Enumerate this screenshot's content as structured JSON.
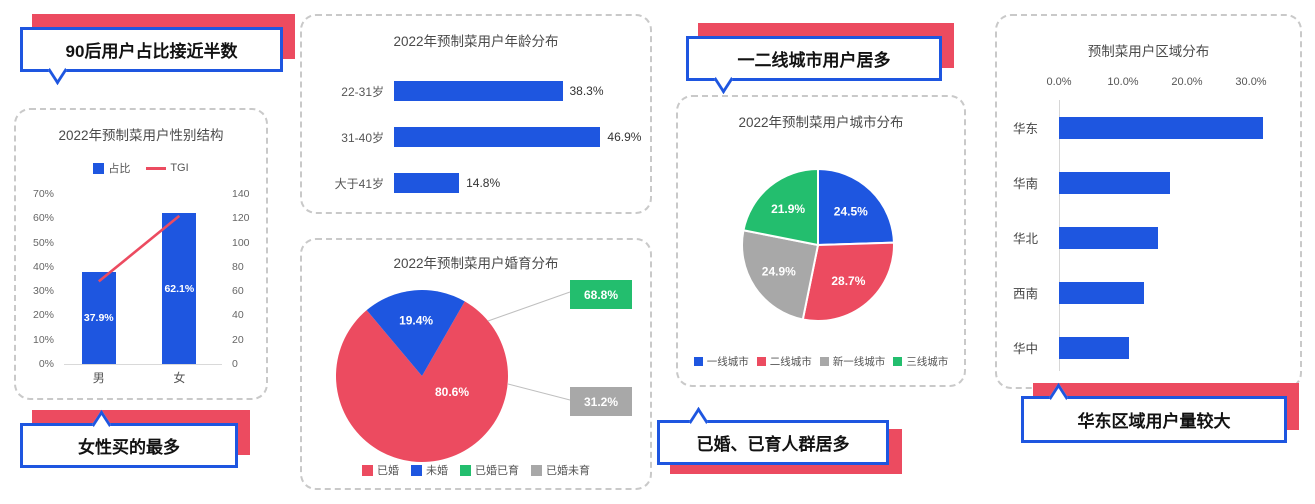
{
  "colors": {
    "blue": "#1E56E0",
    "red": "#EC4B60",
    "green": "#23BE6E",
    "gray": "#A8A8A8",
    "axis_line": "#D9D9D9",
    "connector": "#BFBFBF"
  },
  "callouts": {
    "age": {
      "label": "90后用户占比接近半数"
    },
    "gender": {
      "label": "女性买的最多"
    },
    "city": {
      "label": "一二线城市用户居多"
    },
    "marriage": {
      "label": "已婚、已育人群居多"
    },
    "region": {
      "label": "华东区域用户量较大"
    }
  },
  "chart_data": [
    {
      "id": "gender",
      "type": "bar",
      "title": "2022年预制菜用户性别结构",
      "categories": [
        "男",
        "女"
      ],
      "series": [
        {
          "name": "占比",
          "type": "bar",
          "axis": "left",
          "values": [
            37.9,
            62.1
          ],
          "labels": [
            "37.9%",
            "62.1%"
          ],
          "color_key": "blue"
        },
        {
          "name": "TGI",
          "type": "line",
          "axis": "right",
          "values": [
            68,
            122
          ],
          "estimated": true,
          "color_key": "red"
        }
      ],
      "left_axis": {
        "min": 0,
        "max": 70,
        "ticks": [
          "0%",
          "10%",
          "20%",
          "30%",
          "40%",
          "50%",
          "60%",
          "70%"
        ]
      },
      "right_axis": {
        "min": 0,
        "max": 140,
        "ticks": [
          "0",
          "20",
          "40",
          "60",
          "80",
          "100",
          "120",
          "140"
        ]
      },
      "legend_position": "top"
    },
    {
      "id": "age",
      "type": "bar",
      "orientation": "horizontal",
      "title": "2022年预制菜用户年龄分布",
      "categories": [
        "22-31岁",
        "31-40岁",
        "大于41岁"
      ],
      "values": [
        38.3,
        46.9,
        14.8
      ],
      "labels": [
        "38.3%",
        "46.9%",
        "14.8%"
      ],
      "xlim": [
        0,
        50
      ]
    },
    {
      "id": "marriage",
      "type": "pie",
      "title": "2022年预制菜用户婚育分布",
      "slices": [
        {
          "name": "已婚",
          "value": 80.6,
          "label": "80.6%",
          "color_key": "red"
        },
        {
          "name": "未婚",
          "value": 19.4,
          "label": "19.4%",
          "color_key": "blue"
        }
      ],
      "sub_bars": [
        {
          "name": "已婚已育",
          "value": 68.8,
          "label": "68.8%",
          "color_key": "green"
        },
        {
          "name": "已婚未育",
          "value": 31.2,
          "label": "31.2%",
          "color_key": "gray"
        }
      ],
      "legend_position": "bottom"
    },
    {
      "id": "city",
      "type": "pie",
      "title": "2022年预制菜用户城市分布",
      "slices": [
        {
          "name": "一线城市",
          "value": 24.5,
          "label": "24.5%",
          "color_key": "blue"
        },
        {
          "name": "二线城市",
          "value": 28.7,
          "label": "28.7%",
          "color_key": "red"
        },
        {
          "name": "新一线城市",
          "value": 24.9,
          "label": "24.9%",
          "color_key": "gray"
        },
        {
          "name": "三线城市",
          "value": 21.9,
          "label": "21.9%",
          "color_key": "green"
        }
      ],
      "legend_position": "bottom"
    },
    {
      "id": "region",
      "type": "bar",
      "orientation": "horizontal",
      "title": "预制菜用户区域分布",
      "categories": [
        "华东",
        "华南",
        "华北",
        "西南",
        "华中"
      ],
      "values": [
        31.8,
        17.3,
        15.5,
        13.2,
        11.0
      ],
      "estimated": true,
      "x_axis": {
        "min": 0,
        "max": 30,
        "ticks": [
          "0.0%",
          "10.0%",
          "20.0%",
          "30.0%"
        ],
        "position": "top"
      }
    }
  ]
}
